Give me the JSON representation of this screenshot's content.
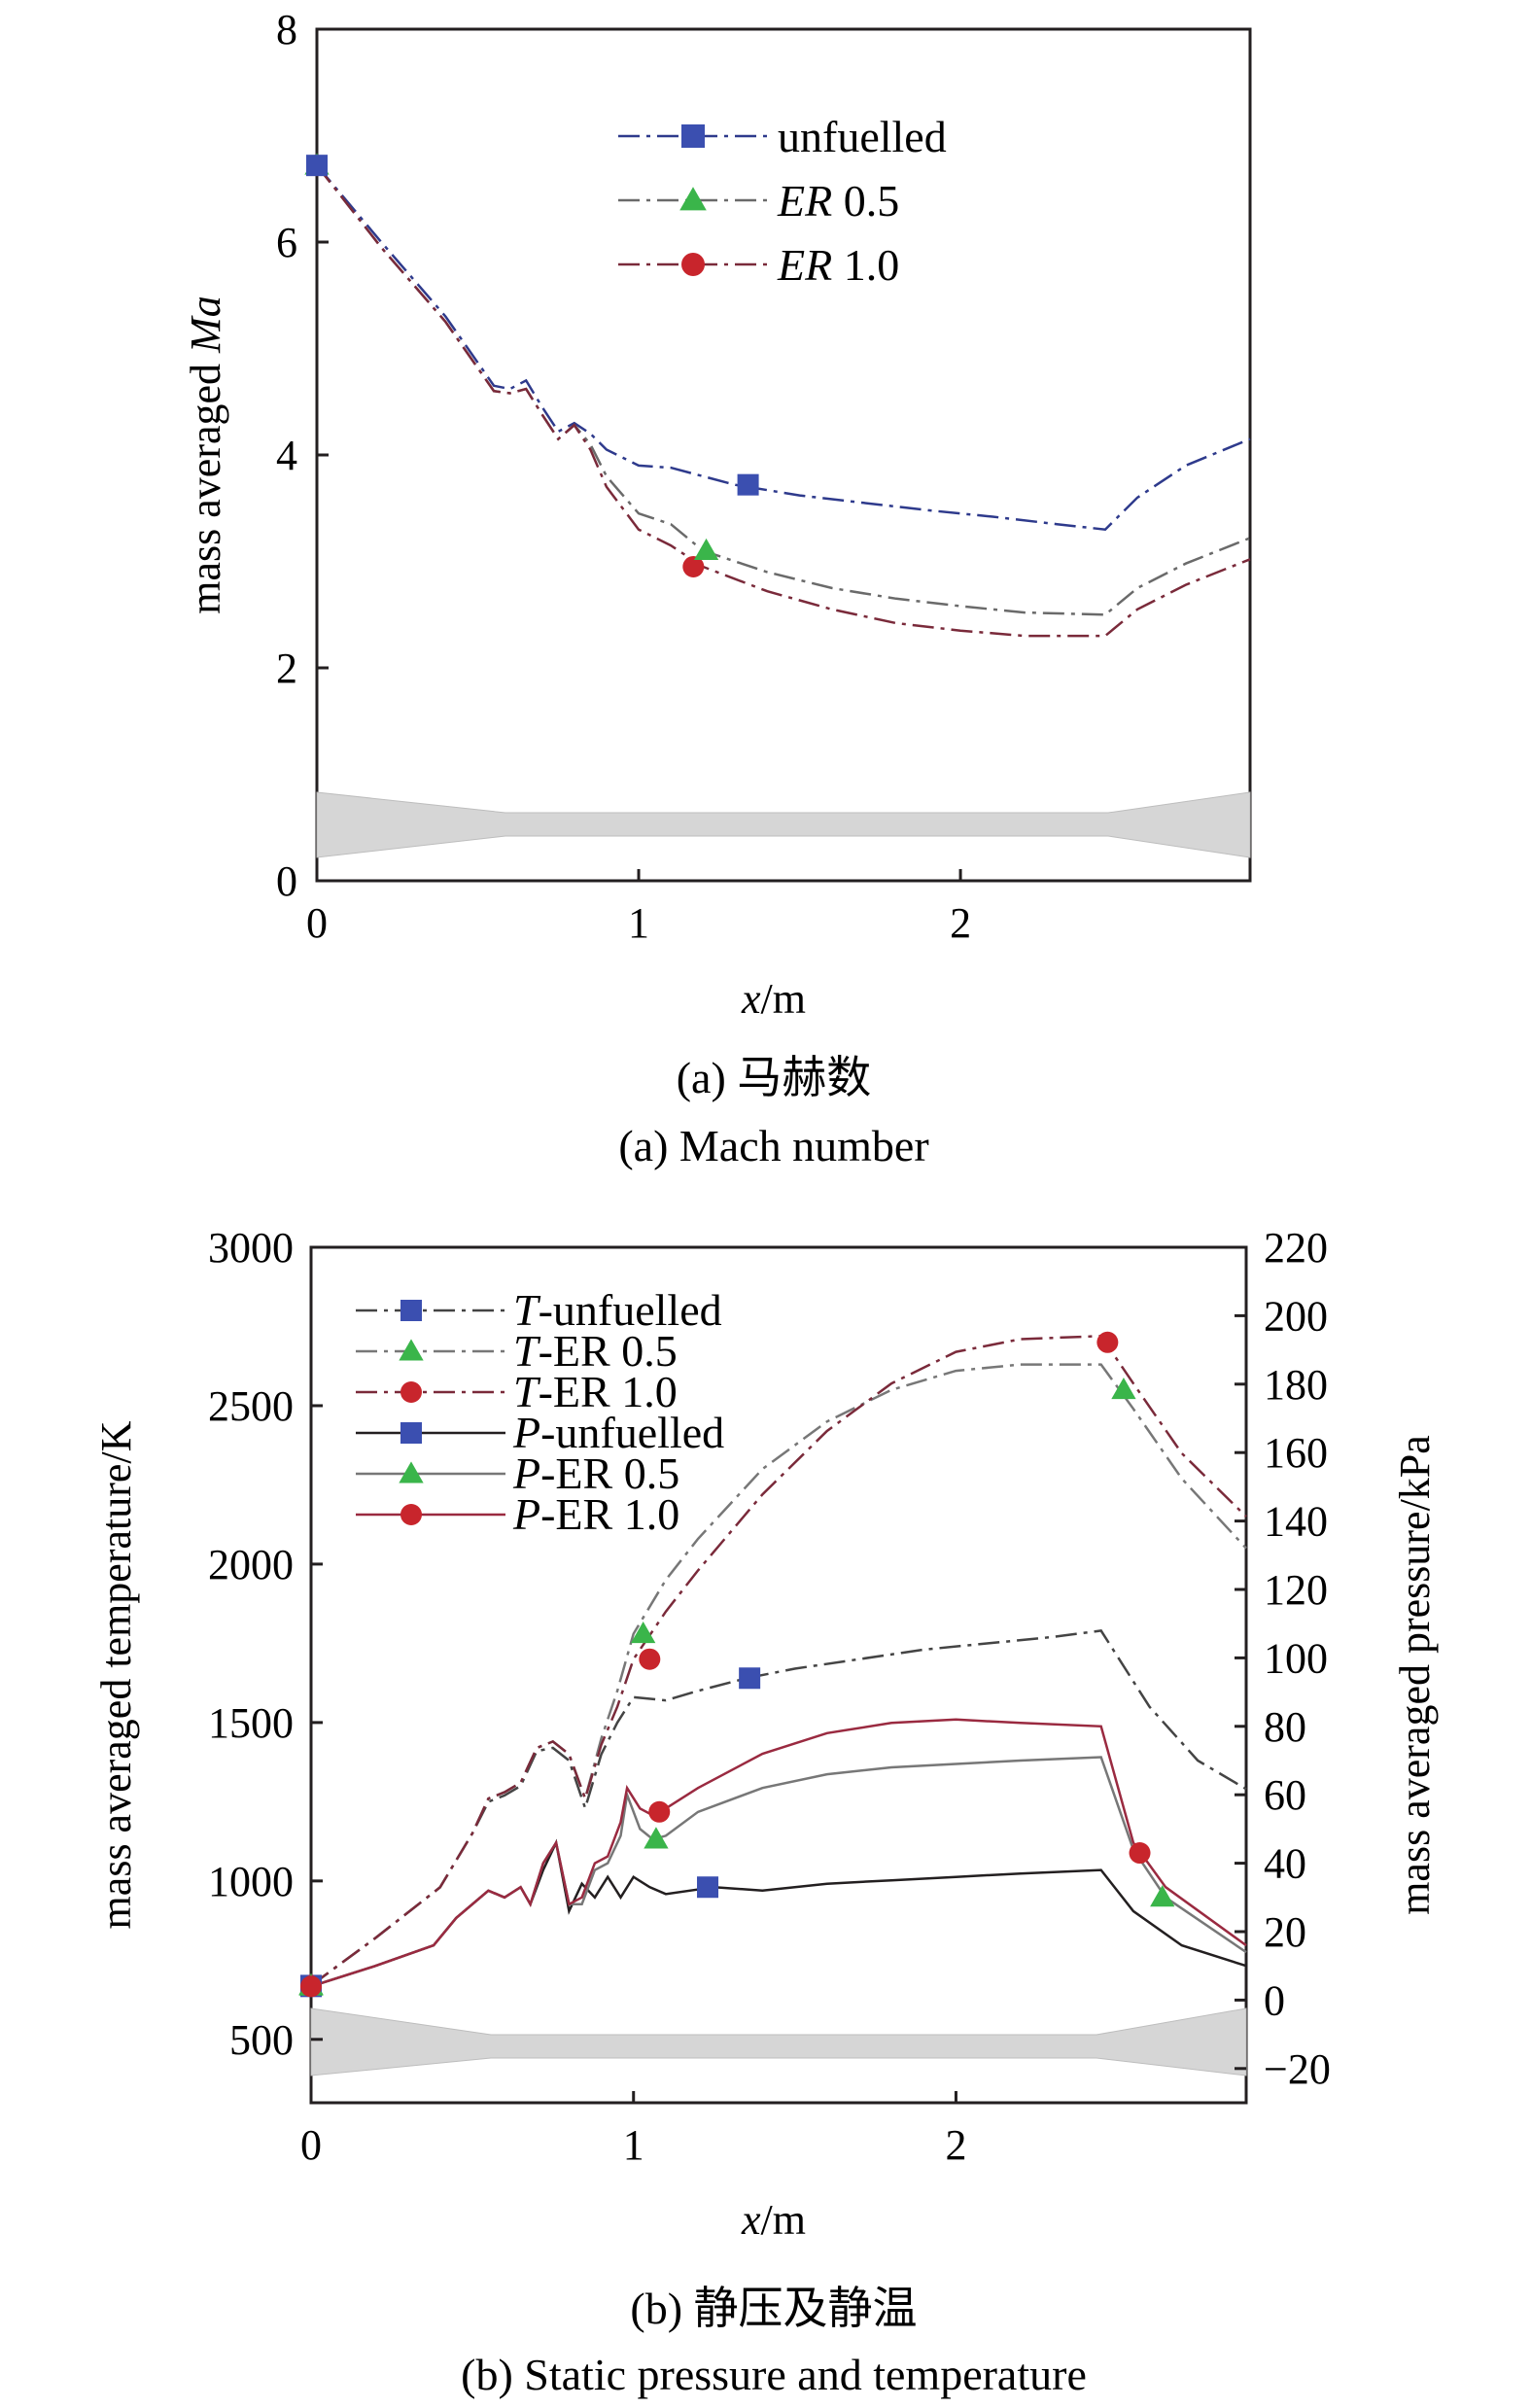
{
  "chart_data": [
    {
      "type": "line",
      "panel": "a",
      "caption_zh": "(a) 马赫数",
      "caption_en": "(a) Mach number",
      "xlabel_var": "x",
      "xlabel_unit": "/m",
      "ylabel_prefix": "mass averaged ",
      "ylabel_var": "Ma",
      "xlim": [
        0,
        2.9
      ],
      "ylim": [
        0,
        8
      ],
      "xticks": [
        0,
        1,
        2
      ],
      "yticks": [
        0,
        2,
        4,
        6,
        8
      ],
      "legend_position": "top-center",
      "series": [
        {
          "name": "unfuelled",
          "italic": "",
          "plain": "unfuelled",
          "color": "#2e3a8c",
          "marker": "square",
          "marker_color": "#3b4fb0",
          "x": [
            0,
            0.2,
            0.4,
            0.55,
            0.6,
            0.65,
            0.7,
            0.75,
            0.8,
            0.85,
            0.9,
            1.0,
            1.1,
            1.3,
            1.5,
            1.7,
            1.9,
            2.1,
            2.3,
            2.45,
            2.55,
            2.7,
            2.9
          ],
          "y": [
            6.72,
            6.0,
            5.3,
            4.65,
            4.62,
            4.7,
            4.45,
            4.22,
            4.3,
            4.2,
            4.05,
            3.9,
            3.88,
            3.72,
            3.62,
            3.55,
            3.48,
            3.42,
            3.35,
            3.3,
            3.6,
            3.9,
            4.15
          ],
          "marker_x": [
            0,
            1.34
          ],
          "marker_y": [
            6.72,
            3.72
          ]
        },
        {
          "name": "ER 0.5",
          "italic": "ER",
          "plain": " 0.5",
          "color": "#6a6a6a",
          "marker": "triangle",
          "marker_color": "#3ab54a",
          "x": [
            0,
            0.2,
            0.4,
            0.55,
            0.6,
            0.65,
            0.7,
            0.75,
            0.8,
            0.85,
            0.9,
            1.0,
            1.1,
            1.2,
            1.4,
            1.6,
            1.8,
            2.0,
            2.2,
            2.45,
            2.55,
            2.7,
            2.9
          ],
          "y": [
            6.72,
            5.95,
            5.25,
            4.6,
            4.58,
            4.62,
            4.38,
            4.15,
            4.28,
            4.1,
            3.8,
            3.45,
            3.35,
            3.1,
            2.9,
            2.75,
            2.65,
            2.58,
            2.52,
            2.5,
            2.75,
            2.98,
            3.22
          ],
          "marker_x": [
            0,
            1.21
          ],
          "marker_y": [
            6.72,
            3.1
          ]
        },
        {
          "name": "ER 1.0",
          "italic": "ER",
          "plain": " 1.0",
          "color": "#7a2a3a",
          "marker": "circle",
          "marker_color": "#c8252c",
          "x": [
            0,
            0.2,
            0.4,
            0.55,
            0.6,
            0.65,
            0.7,
            0.75,
            0.8,
            0.85,
            0.9,
            1.0,
            1.1,
            1.2,
            1.4,
            1.6,
            1.8,
            2.0,
            2.2,
            2.45,
            2.55,
            2.7,
            2.9
          ],
          "y": [
            6.72,
            5.95,
            5.25,
            4.6,
            4.58,
            4.62,
            4.38,
            4.15,
            4.28,
            4.05,
            3.7,
            3.3,
            3.15,
            2.95,
            2.72,
            2.55,
            2.42,
            2.35,
            2.3,
            2.3,
            2.55,
            2.78,
            3.02
          ],
          "marker_x": [
            0,
            1.17
          ],
          "marker_y": [
            6.72,
            2.95
          ]
        }
      ]
    },
    {
      "type": "line",
      "panel": "b",
      "caption_zh": "(b) 静压及静温",
      "caption_en": "(b) Static pressure and temperature",
      "xlabel_var": "x",
      "xlabel_unit": "/m",
      "ylabel_left": "mass averaged temperature/K",
      "ylabel_right": "mass averaged pressure/kPa",
      "xlim": [
        0,
        2.9
      ],
      "ylim_left": [
        300,
        3000
      ],
      "ylim_right": [
        -30,
        220
      ],
      "xticks": [
        0,
        1,
        2
      ],
      "yticks_left": [
        500,
        1000,
        1500,
        2000,
        2500,
        3000
      ],
      "yticks_right": [
        -20,
        0,
        20,
        40,
        60,
        80,
        100,
        120,
        140,
        160,
        180,
        200,
        220
      ],
      "legend_position": "top-left",
      "series": [
        {
          "name": "T-unfuelled",
          "italic": "T",
          "plain": "-unfuelled",
          "axis": "left",
          "style": "dashdot",
          "color": "#444444",
          "marker": "square",
          "marker_color": "#3b4fb0",
          "x": [
            0,
            0.2,
            0.4,
            0.5,
            0.55,
            0.6,
            0.65,
            0.7,
            0.75,
            0.8,
            0.85,
            0.9,
            0.95,
            1.0,
            1.1,
            1.2,
            1.35,
            1.5,
            1.7,
            1.9,
            2.1,
            2.3,
            2.45,
            2.6,
            2.75,
            2.9
          ],
          "y": [
            670,
            820,
            980,
            1150,
            1250,
            1270,
            1300,
            1410,
            1420,
            1380,
            1230,
            1400,
            1500,
            1580,
            1570,
            1600,
            1640,
            1670,
            1700,
            1730,
            1750,
            1770,
            1790,
            1550,
            1380,
            1290
          ],
          "marker_x": [
            0,
            1.36
          ],
          "marker_y": [
            670,
            1640
          ]
        },
        {
          "name": "T-ER 0.5",
          "italic": "T",
          "plain": "-ER 0.5",
          "axis": "left",
          "style": "dashdot",
          "color": "#777777",
          "marker": "triangle",
          "marker_color": "#3ab54a",
          "x": [
            0,
            0.2,
            0.4,
            0.5,
            0.55,
            0.6,
            0.65,
            0.7,
            0.75,
            0.8,
            0.85,
            0.9,
            0.95,
            1.0,
            1.1,
            1.2,
            1.4,
            1.6,
            1.8,
            2.0,
            2.2,
            2.45,
            2.55,
            2.7,
            2.9
          ],
          "y": [
            670,
            820,
            980,
            1150,
            1260,
            1280,
            1310,
            1420,
            1440,
            1400,
            1260,
            1450,
            1600,
            1780,
            1950,
            2080,
            2300,
            2450,
            2550,
            2610,
            2630,
            2630,
            2490,
            2270,
            2050
          ],
          "marker_x": [
            0,
            1.03,
            2.52
          ],
          "marker_y": [
            670,
            1780,
            2550
          ]
        },
        {
          "name": "T-ER 1.0",
          "italic": "T",
          "plain": "-ER 1.0",
          "axis": "left",
          "style": "dashdot",
          "color": "#7a2a3a",
          "marker": "circle",
          "marker_color": "#c8252c",
          "x": [
            0,
            0.2,
            0.4,
            0.5,
            0.55,
            0.6,
            0.65,
            0.7,
            0.75,
            0.8,
            0.85,
            0.9,
            0.95,
            1.0,
            1.1,
            1.2,
            1.4,
            1.6,
            1.8,
            2.0,
            2.2,
            2.45,
            2.55,
            2.7,
            2.9
          ],
          "y": [
            670,
            820,
            980,
            1150,
            1260,
            1280,
            1310,
            1420,
            1440,
            1400,
            1260,
            1430,
            1550,
            1700,
            1850,
            1980,
            2220,
            2420,
            2570,
            2670,
            2710,
            2720,
            2570,
            2350,
            2150
          ],
          "marker_x": [
            0,
            1.05,
            2.47
          ],
          "marker_y": [
            670,
            1700,
            2700
          ]
        },
        {
          "name": "P-unfuelled",
          "italic": "P",
          "plain": "-unfuelled",
          "axis": "right",
          "style": "solid",
          "color": "#231f20",
          "marker": "square",
          "marker_color": "#3b4fb0",
          "x": [
            0,
            0.2,
            0.38,
            0.45,
            0.55,
            0.6,
            0.65,
            0.68,
            0.72,
            0.76,
            0.8,
            0.84,
            0.88,
            0.92,
            0.96,
            1.0,
            1.05,
            1.1,
            1.25,
            1.4,
            1.6,
            1.8,
            2.0,
            2.2,
            2.45,
            2.55,
            2.7,
            2.9
          ],
          "y": [
            4,
            10,
            16,
            24,
            32,
            30,
            33,
            28,
            38,
            46,
            26,
            34,
            30,
            36,
            30,
            36,
            33,
            31,
            33,
            32,
            34,
            35,
            36,
            37,
            38,
            26,
            16,
            10
          ],
          "marker_x": [
            0,
            1.23
          ],
          "marker_y": [
            4,
            33
          ]
        },
        {
          "name": "P-ER 0.5",
          "italic": "P",
          "plain": "-ER 0.5",
          "axis": "right",
          "style": "solid",
          "color": "#777777",
          "marker": "triangle",
          "marker_color": "#3ab54a",
          "x": [
            0,
            0.2,
            0.38,
            0.45,
            0.55,
            0.6,
            0.65,
            0.68,
            0.72,
            0.76,
            0.8,
            0.84,
            0.88,
            0.92,
            0.96,
            0.98,
            1.02,
            1.06,
            1.1,
            1.2,
            1.4,
            1.6,
            1.8,
            2.0,
            2.2,
            2.45,
            2.55,
            2.65,
            2.9
          ],
          "y": [
            4,
            10,
            16,
            24,
            32,
            30,
            33,
            28,
            40,
            46,
            28,
            28,
            38,
            40,
            48,
            60,
            50,
            47,
            48,
            55,
            62,
            66,
            68,
            69,
            70,
            71,
            44,
            30,
            14
          ],
          "marker_x": [
            0,
            1.07,
            2.64
          ],
          "marker_y": [
            4,
            47,
            30
          ]
        },
        {
          "name": "P-ER 1.0",
          "italic": "P",
          "plain": "-ER 1.0",
          "axis": "right",
          "style": "solid",
          "color": "#9a2a40",
          "marker": "circle",
          "marker_color": "#c8252c",
          "x": [
            0,
            0.2,
            0.38,
            0.45,
            0.55,
            0.6,
            0.65,
            0.68,
            0.72,
            0.76,
            0.8,
            0.84,
            0.88,
            0.92,
            0.96,
            0.98,
            1.02,
            1.06,
            1.1,
            1.2,
            1.4,
            1.6,
            1.8,
            2.0,
            2.2,
            2.45,
            2.55,
            2.65,
            2.9
          ],
          "y": [
            4,
            10,
            16,
            24,
            32,
            30,
            33,
            28,
            40,
            46,
            28,
            30,
            40,
            42,
            52,
            62,
            56,
            54,
            56,
            62,
            72,
            78,
            81,
            82,
            81,
            80,
            46,
            33,
            16
          ],
          "marker_x": [
            0,
            1.08,
            2.57
          ],
          "marker_y": [
            4,
            55,
            43
          ]
        }
      ]
    }
  ]
}
